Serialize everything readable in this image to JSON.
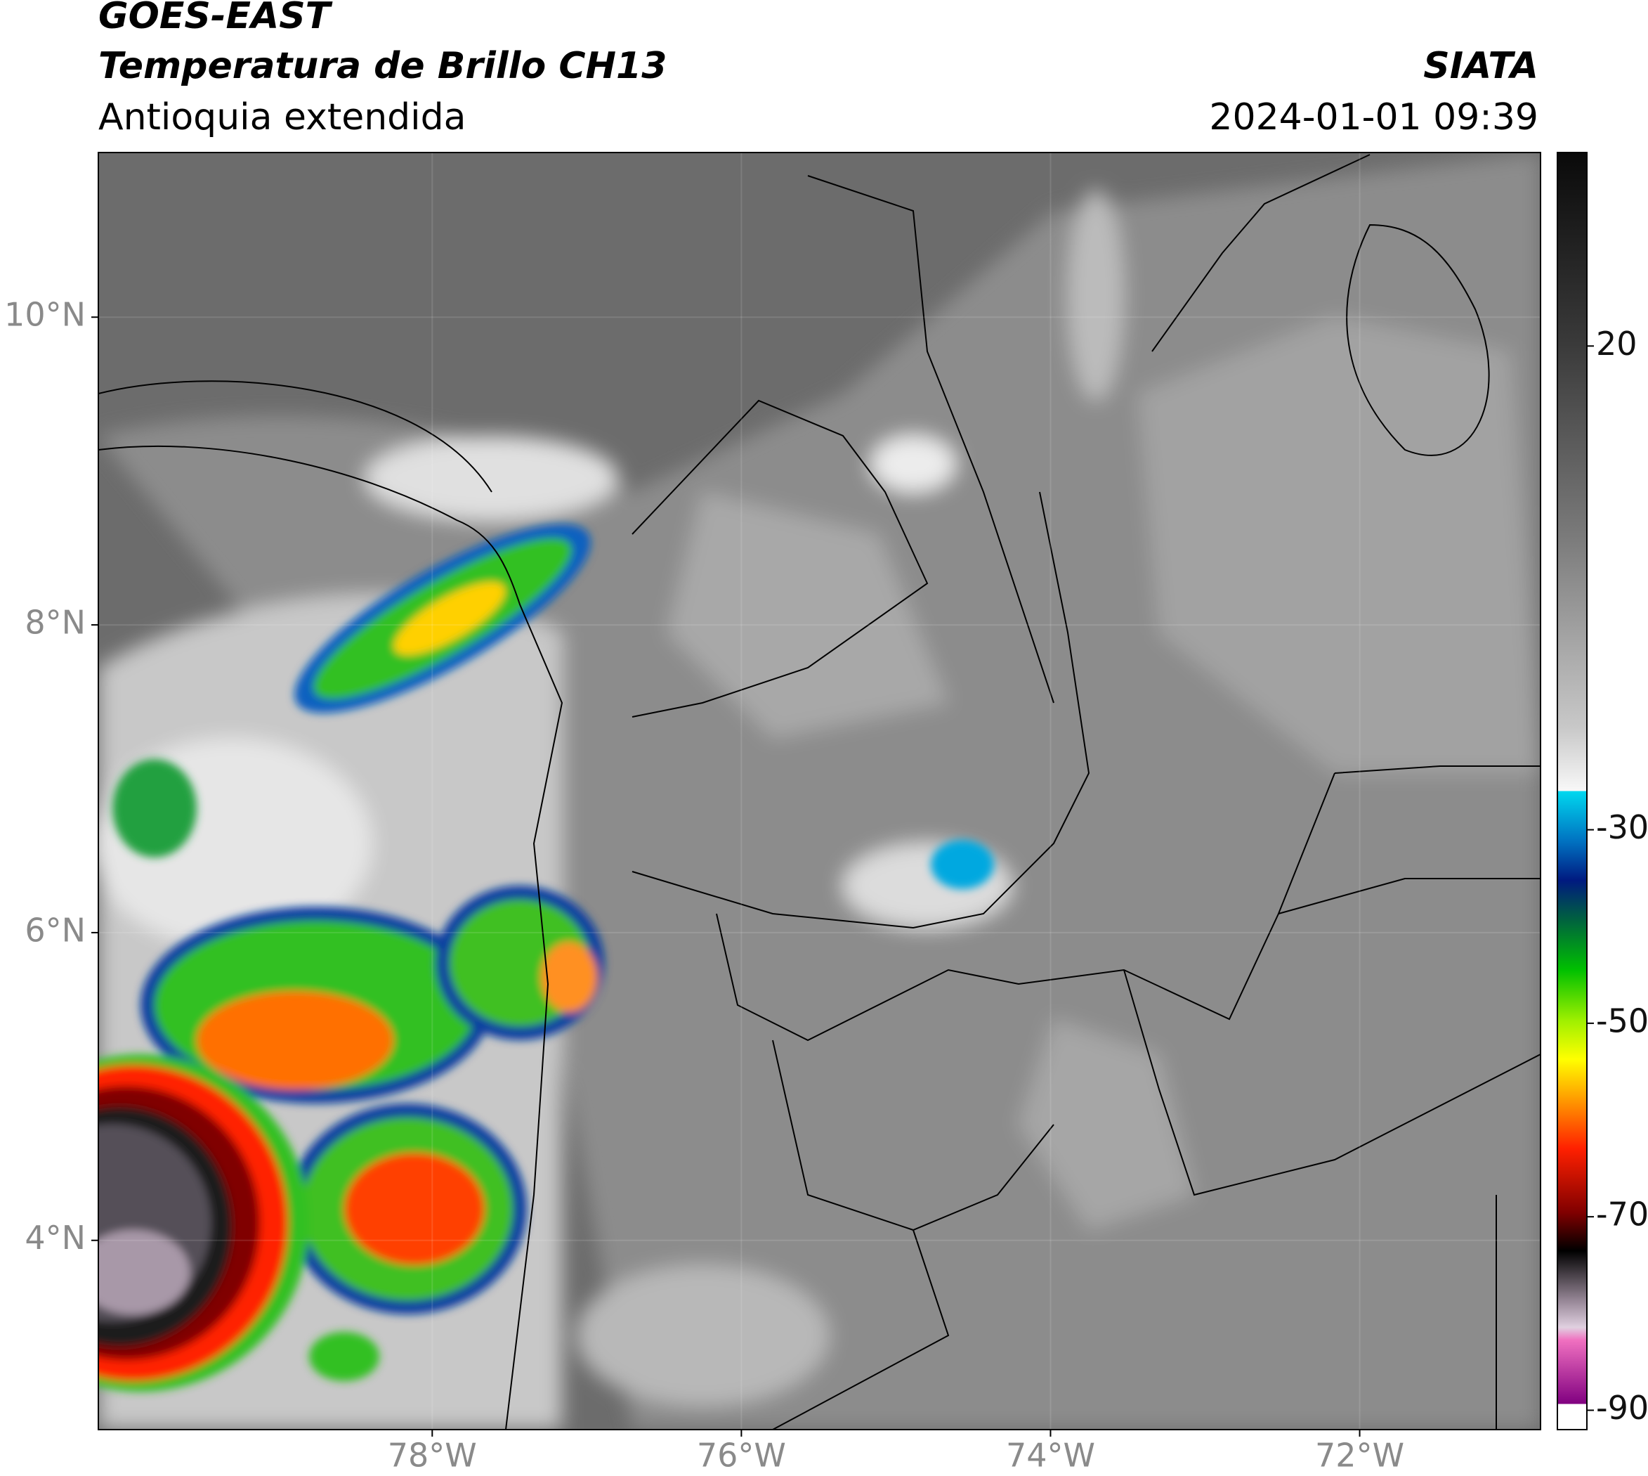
{
  "header": {
    "title": "GOES-EAST",
    "subtitle": "Temperatura de Brillo CH13",
    "region": "Antioquia extendida",
    "source": "SIATA",
    "datetime": "2024-01-01 09:39"
  },
  "map": {
    "xlim": [
      -80.16,
      -70.83
    ],
    "ylim": [
      2.77,
      11.07
    ],
    "grid": true,
    "xticks": [
      {
        "value": -78,
        "label": "78°W"
      },
      {
        "value": -76,
        "label": "76°W"
      },
      {
        "value": -74,
        "label": "74°W"
      },
      {
        "value": -72,
        "label": "72°W"
      }
    ],
    "yticks": [
      {
        "value": 10,
        "label": "10°N"
      },
      {
        "value": 8,
        "label": "8°N"
      },
      {
        "value": 6,
        "label": "6°N"
      },
      {
        "value": 4,
        "label": "4°N"
      }
    ]
  },
  "colorbar": {
    "clim": [
      -92,
      40
    ],
    "ticks": [
      20,
      -30,
      -50,
      -70,
      -90
    ]
  }
}
